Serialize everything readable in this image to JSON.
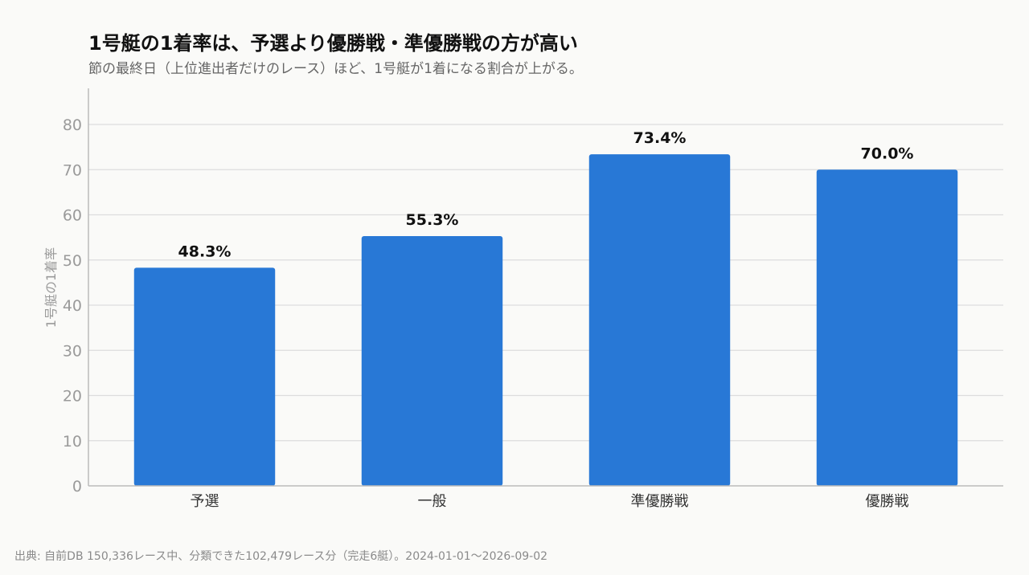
{
  "title": "1号艇の1着率は、予選より優勝戦・準優勝戦の方が高い",
  "subtitle": "節の最終日（上位進出者だけのレース）ほど、1号艇が1着になる割合が上がる。",
  "footer": "出典: 自前DB 150,336レース中、分類できた102,479レース分（完走6艇）。2024-01-01～2026-09-02",
  "colors": {
    "bar": "#2878d6",
    "grid": "#dddddd",
    "background": "#fafaf8"
  },
  "chart_data": {
    "type": "bar",
    "title": "1号艇の1着率は、予選より優勝戦・準優勝戦の方が高い",
    "subtitle": "節の最終日（上位進出者だけのレース）ほど、1号艇が1着になる割合が上がる。",
    "xlabel": "",
    "ylabel": "1号艇の1着率",
    "categories": [
      "予選",
      "一般",
      "準優勝戦",
      "優勝戦"
    ],
    "values": [
      48.3,
      55.3,
      73.4,
      70.0
    ],
    "data_labels": [
      "48.3%",
      "55.3%",
      "73.4%",
      "70.0%"
    ],
    "ylim": [
      0,
      88
    ],
    "yticks": [
      0,
      10,
      20,
      30,
      40,
      50,
      60,
      70,
      80
    ],
    "grid": true,
    "legend": "none"
  }
}
